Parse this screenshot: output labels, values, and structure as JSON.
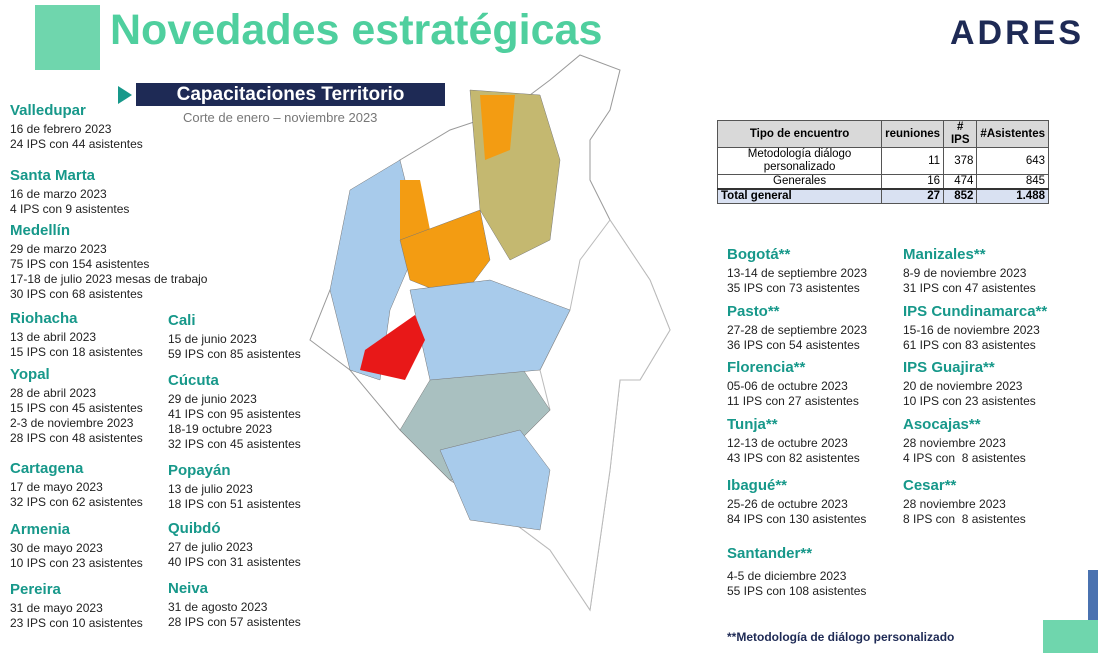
{
  "header": {
    "title": "Novedades estratégicas",
    "logo": "ADRES",
    "banner": "Capacitaciones Territorio",
    "subtitle": "Corte de enero – noviembre 2023"
  },
  "left_column_1": [
    {
      "city": "Valledupar",
      "lines": [
        "16 de febrero 2023",
        "24 IPS con 44 asistentes"
      ]
    },
    {
      "city": "Santa Marta",
      "lines": [
        "16 de marzo 2023",
        "4 IPS con 9 asistentes"
      ]
    },
    {
      "city": "Medellín",
      "lines": [
        "29 de marzo 2023",
        "75 IPS con 154 asistentes",
        "17-18 de julio 2023 mesas de trabajo",
        "30 IPS con 68 asistentes"
      ]
    },
    {
      "city": "Riohacha",
      "lines": [
        "13 de abril 2023",
        "15 IPS con 18 asistentes"
      ]
    },
    {
      "city": "Yopal",
      "lines": [
        "28 de abril 2023",
        "15 IPS con 45 asistentes",
        "2-3 de noviembre 2023",
        "28 IPS con 48 asistentes"
      ]
    },
    {
      "city": "Cartagena",
      "lines": [
        "17 de mayo 2023",
        "32 IPS con 62 asistentes"
      ]
    },
    {
      "city": "Armenia",
      "lines": [
        "30 de mayo 2023",
        "10 IPS con 23 asistentes"
      ]
    },
    {
      "city": "Pereira",
      "lines": [
        "31 de mayo 2023",
        "23 IPS con 10 asistentes"
      ]
    }
  ],
  "left_column_2": [
    {
      "city": "Cali",
      "lines": [
        "15 de junio 2023",
        "59 IPS con 85 asistentes"
      ]
    },
    {
      "city": "Cúcuta",
      "lines": [
        "29 de junio 2023",
        "41 IPS con 95 asistentes",
        "18-19 octubre 2023",
        "32 IPS con 45 asistentes"
      ]
    },
    {
      "city": "Popayán",
      "lines": [
        "13 de julio 2023",
        "18 IPS con 51 asistentes"
      ]
    },
    {
      "city": "Quibdó",
      "lines": [
        "27 de julio 2023",
        "40 IPS con 31 asistentes"
      ]
    },
    {
      "city": "Neiva",
      "lines": [
        "31 de agosto 2023",
        "28 IPS con 57 asistentes"
      ]
    }
  ],
  "table": {
    "header": [
      "Tipo de encuentro",
      "reuniones",
      "# IPS",
      "#Asistentes"
    ],
    "rows": [
      [
        "Metodología diálogo personalizado",
        "11",
        "378",
        "643"
      ],
      [
        "Generales",
        "16",
        "474",
        "845"
      ],
      [
        "Total general",
        "27",
        "852",
        "1.488"
      ]
    ]
  },
  "right_column_1": [
    {
      "city": "Bogotá**",
      "lines": [
        "13-14 de septiembre 2023",
        "35 IPS con 73 asistentes"
      ]
    },
    {
      "city": "Pasto**",
      "lines": [
        "27-28 de septiembre 2023",
        "36 IPS con 54 asistentes"
      ]
    },
    {
      "city": "Florencia**",
      "lines": [
        "05-06 de octubre 2023",
        "11 IPS con 27 asistentes"
      ]
    },
    {
      "city": "Tunja**",
      "lines": [
        "12-13 de octubre 2023",
        "43 IPS con 82 asistentes"
      ]
    },
    {
      "city": "Ibagué**",
      "lines": [
        "25-26 de octubre 2023",
        "84 IPS con 130 asistentes"
      ]
    },
    {
      "city": "Santander**",
      "lines": [
        "4-5 de diciembre 2023",
        "55 IPS con 108 asistentes"
      ]
    }
  ],
  "right_column_2": [
    {
      "city": "Manizales**",
      "lines": [
        "8-9 de noviembre 2023",
        "31 IPS con 47 asistentes"
      ]
    },
    {
      "city": "IPS Cundinamarca**",
      "lines": [
        "15-16 de noviembre 2023",
        "61 IPS con 83 asistentes"
      ]
    },
    {
      "city": "IPS Guajira**",
      "lines": [
        "20 de noviembre 2023",
        "10 IPS con 23 asistentes"
      ]
    },
    {
      "city": "Asocajas**",
      "lines": [
        "28 noviembre 2023",
        "4 IPS con  8 asistentes"
      ]
    },
    {
      "city": "Cesar**",
      "lines": [
        "28 noviembre 2023",
        "8 IPS con  8 asistentes"
      ]
    }
  ],
  "footnote": "**Metodología de diálogo personalizado"
}
